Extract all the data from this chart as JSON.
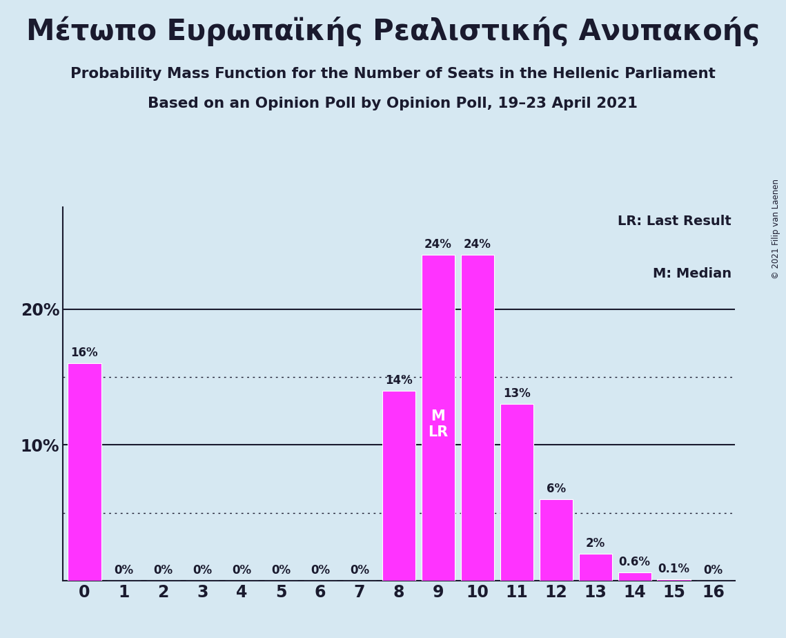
{
  "title_greek": "Μέτωπο Ευρωπαϊκής Ρεαλιστικής Ανυπακοής",
  "subtitle1": "Probability Mass Function for the Number of Seats in the Hellenic Parliament",
  "subtitle2": "Based on an Opinion Poll by Opinion Poll, 19–23 April 2021",
  "copyright": "© 2021 Filip van Laenen",
  "legend_lr": "LR: Last Result",
  "legend_m": "M: Median",
  "categories": [
    0,
    1,
    2,
    3,
    4,
    5,
    6,
    7,
    8,
    9,
    10,
    11,
    12,
    13,
    14,
    15,
    16
  ],
  "values": [
    0.16,
    0.0,
    0.0,
    0.0,
    0.0,
    0.0,
    0.0,
    0.0,
    0.14,
    0.24,
    0.24,
    0.13,
    0.06,
    0.02,
    0.006,
    0.001,
    0.0
  ],
  "bar_labels": [
    "16%",
    "0%",
    "0%",
    "0%",
    "0%",
    "0%",
    "0%",
    "0%",
    "14%",
    "24%",
    "24%",
    "13%",
    "6%",
    "2%",
    "0.6%",
    "0.1%",
    "0%"
  ],
  "bar_color": "#FF33FF",
  "background_color": "#D6E8F2",
  "text_color": "#1a1a2e",
  "median_bar_idx": 9,
  "ylim_max": 0.275,
  "solid_gridlines": [
    0.1,
    0.2
  ],
  "dotted_gridlines": [
    0.05,
    0.15
  ]
}
